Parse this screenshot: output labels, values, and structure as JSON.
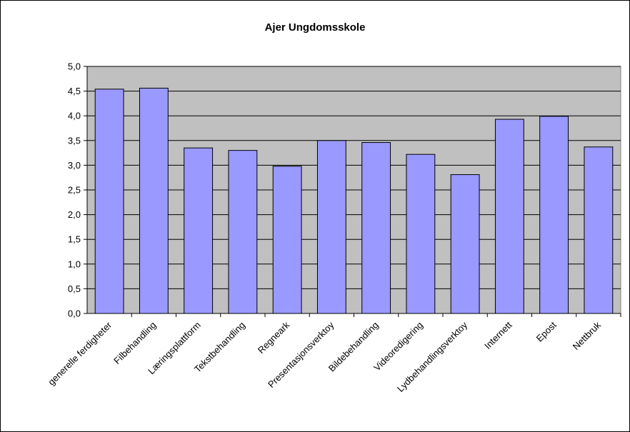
{
  "chart_data": {
    "type": "bar",
    "title": "Ajer Ungdomsskole",
    "xlabel": "",
    "ylabel": "",
    "categories": [
      "generelle ferdigheter",
      "Filbehandling",
      "Læringsplattform",
      "Tekstbehandling",
      "Regneark",
      "Presentasjonsverktoy",
      "Bildebehandling",
      "Videoredigering",
      "Lydbehandlingsverktoy",
      "Internett",
      "Epost",
      "Nettbruk"
    ],
    "values": [
      4.54,
      4.56,
      3.35,
      3.3,
      2.98,
      3.5,
      3.46,
      3.22,
      2.81,
      3.93,
      3.99,
      3.37
    ],
    "ylim": [
      0,
      5
    ],
    "yticks": [
      "0,0",
      "0,5",
      "1,0",
      "1,5",
      "2,0",
      "2,5",
      "3,0",
      "3,5",
      "4,0",
      "4,5",
      "5,0"
    ],
    "grid": true,
    "legend": "none",
    "colors": {
      "bar_fill": "#9999ff",
      "bar_stroke": "#000000",
      "plot_background": "#c0c0c0",
      "gridline": "#000000"
    }
  }
}
